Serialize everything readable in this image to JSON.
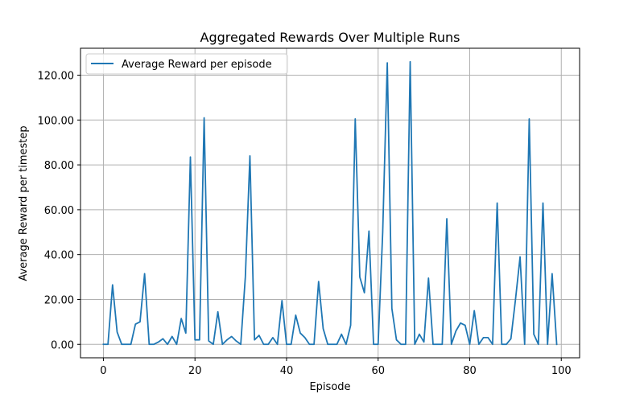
{
  "chart_data": {
    "type": "line",
    "title": "Aggregated Rewards Over Multiple Runs",
    "xlabel": "Episode",
    "ylabel": "Average Reward per timestep",
    "xlim": [
      -5,
      104
    ],
    "ylim": [
      -6,
      132
    ],
    "xticks": [
      0,
      20,
      40,
      60,
      80,
      100
    ],
    "yticks": [
      0,
      20,
      40,
      60,
      80,
      100,
      120
    ],
    "ytick_labels": [
      "0.00",
      "20.00",
      "40.00",
      "60.00",
      "80.00",
      "100.00",
      "120.00"
    ],
    "grid": true,
    "legend_position": "top-left",
    "series": [
      {
        "name": "Average Reward per episode",
        "color": "#1f77b4",
        "x": [
          0,
          1,
          2,
          3,
          4,
          5,
          6,
          7,
          8,
          9,
          10,
          11,
          12,
          13,
          14,
          15,
          16,
          17,
          18,
          19,
          20,
          21,
          22,
          23,
          24,
          25,
          26,
          27,
          28,
          29,
          30,
          31,
          32,
          33,
          34,
          35,
          36,
          37,
          38,
          39,
          40,
          41,
          42,
          43,
          44,
          45,
          46,
          47,
          48,
          49,
          50,
          51,
          52,
          53,
          54,
          55,
          56,
          57,
          58,
          59,
          60,
          61,
          62,
          63,
          64,
          65,
          66,
          67,
          68,
          69,
          70,
          71,
          72,
          73,
          74,
          75,
          76,
          77,
          78,
          79,
          80,
          81,
          82,
          83,
          84,
          85,
          86,
          87,
          88,
          89,
          90,
          91,
          92,
          93,
          94,
          95,
          96,
          97,
          98,
          99
        ],
        "y": [
          0,
          0,
          26.5,
          5.5,
          0,
          0,
          0,
          9,
          10,
          31.5,
          0,
          0,
          1,
          2.5,
          0,
          3.5,
          0,
          11.5,
          5,
          83.5,
          2,
          2,
          101,
          1.5,
          0,
          14.5,
          0,
          2,
          3.5,
          1.5,
          0,
          30,
          84,
          2,
          4,
          0,
          0,
          3,
          0,
          19.5,
          0,
          0,
          13,
          5,
          3,
          0,
          0,
          28,
          7,
          0,
          0,
          0,
          4.5,
          0,
          8.5,
          100.5,
          30,
          23,
          50.5,
          0,
          0,
          50,
          125.5,
          16,
          2,
          0,
          0,
          126,
          0,
          4.5,
          1,
          29.5,
          0,
          0,
          0,
          56,
          0,
          6,
          9.5,
          8.5,
          0,
          15,
          0,
          3,
          3,
          0,
          63,
          0,
          0,
          2.5,
          20,
          39,
          0,
          100.5,
          4.5,
          0,
          63,
          0,
          31.5,
          0
        ]
      }
    ]
  }
}
